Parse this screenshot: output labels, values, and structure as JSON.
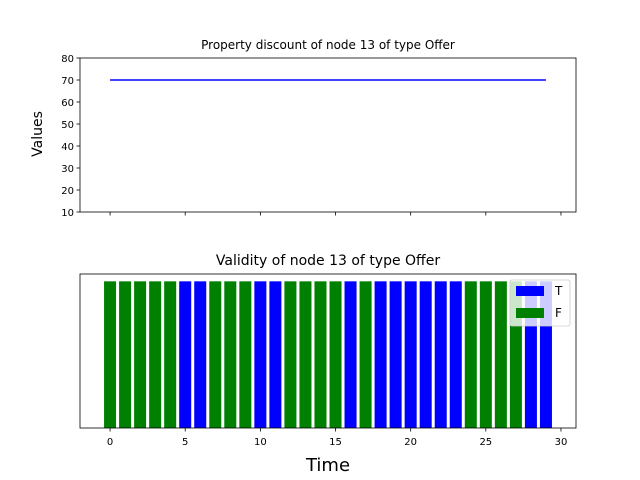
{
  "chart_data": [
    {
      "type": "line",
      "title": "Property discount of node 13 of type Offer",
      "xlabel": "",
      "ylabel": "Values",
      "xlim": [
        -2,
        31
      ],
      "ylim": [
        10,
        80
      ],
      "x_ticks": [
        0,
        5,
        10,
        15,
        20,
        25,
        30
      ],
      "x_tick_labels_shown": false,
      "y_ticks": [
        10,
        20,
        30,
        40,
        50,
        60,
        70,
        80
      ],
      "y_tick_labels": [
        "10",
        "20",
        "30",
        "40",
        "50",
        "60",
        "70",
        "80"
      ],
      "grid": false,
      "series": [
        {
          "color": "#0000ff",
          "x": [
            0,
            29
          ],
          "y": [
            70,
            70
          ]
        }
      ]
    },
    {
      "type": "bar",
      "title": "Validity of node 13 of type Offer",
      "xlabel": "Time",
      "ylabel": "",
      "xlim": [
        -2,
        31
      ],
      "ylim": [
        0,
        1.05
      ],
      "x_ticks": [
        0,
        5,
        10,
        15,
        20,
        25,
        30
      ],
      "x_tick_labels": [
        "0",
        "5",
        "10",
        "15",
        "20",
        "25",
        "30"
      ],
      "y_ticks_shown": false,
      "grid": false,
      "legend": {
        "placement": "top-right",
        "entries": [
          {
            "label": "T",
            "color": "#0000ff"
          },
          {
            "label": "F",
            "color": "#008000"
          }
        ]
      },
      "bar_height": 1,
      "bar_width": 0.8,
      "x": [
        0,
        1,
        2,
        3,
        4,
        5,
        6,
        7,
        8,
        9,
        10,
        11,
        12,
        13,
        14,
        15,
        16,
        17,
        18,
        19,
        20,
        21,
        22,
        23,
        24,
        25,
        26,
        27,
        28,
        29
      ],
      "values": [
        "F",
        "F",
        "F",
        "F",
        "F",
        "T",
        "T",
        "F",
        "F",
        "F",
        "T",
        "T",
        "F",
        "F",
        "F",
        "F",
        "T",
        "F",
        "T",
        "T",
        "T",
        "T",
        "T",
        "T",
        "F",
        "F",
        "F",
        "F",
        "T",
        "T"
      ]
    }
  ]
}
